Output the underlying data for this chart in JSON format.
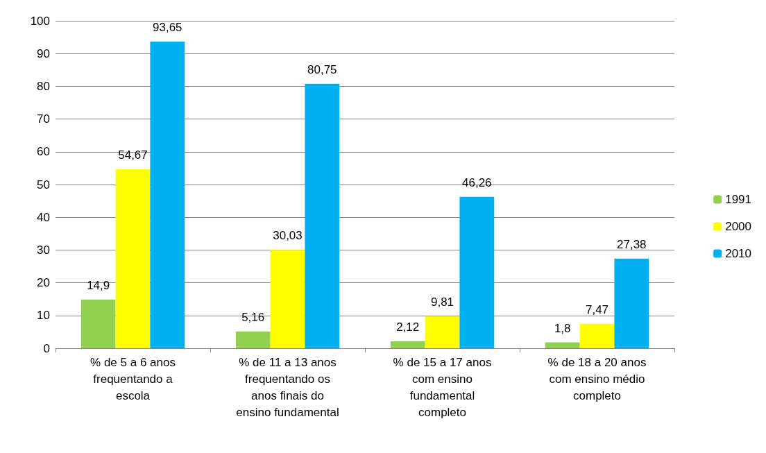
{
  "chart_data": {
    "type": "bar",
    "categories": [
      "% de 5 a 6 anos\nfrequentando a\nescola",
      "% de 11 a 13 anos\nfrequentando os\nanos finais do\nensino fundamental",
      "% de 15 a 17 anos\ncom ensino\nfundamental\ncompleto",
      "% de 18 a 20 anos\ncom ensino médio\ncompleto"
    ],
    "series": [
      {
        "name": "1991",
        "color": "#92d050",
        "values": [
          14.9,
          5.16,
          2.12,
          1.8
        ],
        "value_labels": [
          "14,9",
          "5,16",
          "2,12",
          "1,8"
        ]
      },
      {
        "name": "2000",
        "color": "#ffff00",
        "values": [
          54.67,
          30.03,
          9.81,
          7.47
        ],
        "value_labels": [
          "54,67",
          "30,03",
          "9,81",
          "7,47"
        ]
      },
      {
        "name": "2010",
        "color": "#00b0f0",
        "values": [
          93.65,
          80.75,
          46.26,
          27.38
        ],
        "value_labels": [
          "93,65",
          "80,75",
          "46,26",
          "27,38"
        ]
      }
    ],
    "ylim": [
      0,
      100
    ],
    "yticks": [
      0,
      10,
      20,
      30,
      40,
      50,
      60,
      70,
      80,
      90,
      100
    ],
    "grid": "y",
    "legend": "right"
  }
}
